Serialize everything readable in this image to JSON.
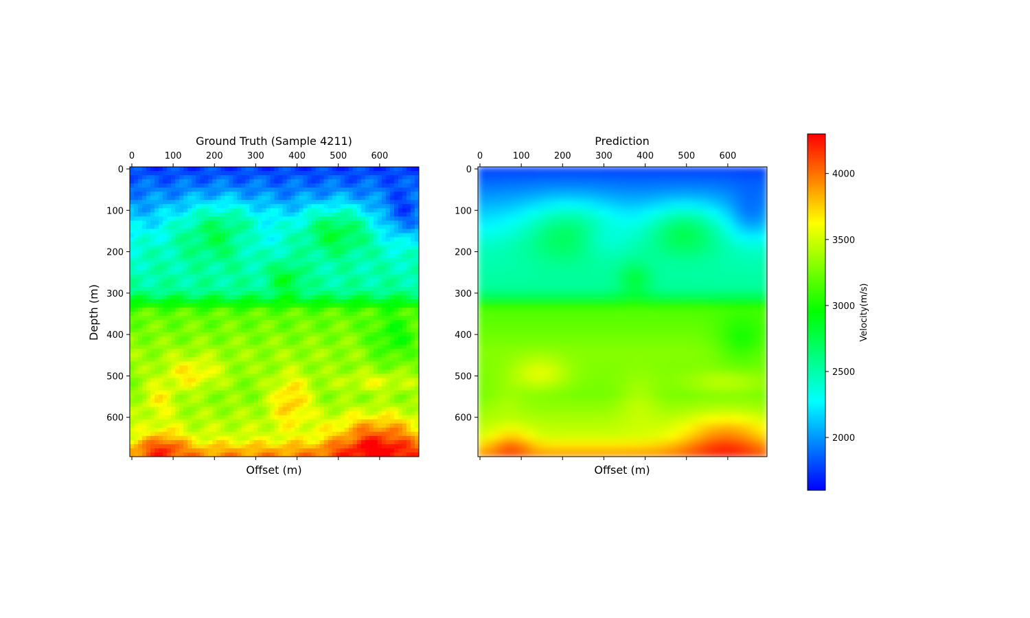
{
  "chart_data": [
    {
      "type": "heatmap",
      "title": "Ground Truth (Sample 4211)",
      "xlabel": "Offset (m)",
      "ylabel": "Depth (m)",
      "x_ticks": [
        0,
        100,
        200,
        300,
        400,
        500,
        600
      ],
      "y_ticks": [
        0,
        100,
        200,
        300,
        400,
        500,
        600
      ],
      "xlim": [
        0,
        700
      ],
      "ylim": [
        700,
        0
      ],
      "x_axis_position": "top",
      "grid": false,
      "grid_resolution": "coarse, blocky pixels (~10 m cells)",
      "depth_profile": [
        {
          "depth": 0,
          "velocity": 1750
        },
        {
          "depth": 100,
          "velocity": 2050
        },
        {
          "depth": 200,
          "velocity": 2400
        },
        {
          "depth": 300,
          "velocity": 2550
        },
        {
          "depth": 350,
          "velocity": 3200
        },
        {
          "depth": 450,
          "velocity": 3350
        },
        {
          "depth": 550,
          "velocity": 3300
        },
        {
          "depth": 650,
          "velocity": 3500
        },
        {
          "depth": 680,
          "velocity": 3800
        },
        {
          "depth": 700,
          "velocity": 3950
        }
      ]
    },
    {
      "type": "heatmap",
      "title": "Prediction",
      "xlabel": "Offset (m)",
      "ylabel": "",
      "x_ticks": [
        0,
        100,
        200,
        300,
        400,
        500,
        600
      ],
      "y_ticks": [
        0,
        100,
        200,
        300,
        400,
        500,
        600
      ],
      "xlim": [
        0,
        700
      ],
      "ylim": [
        700,
        0
      ],
      "x_axis_position": "top",
      "grid": false,
      "grid_resolution": "smooth",
      "depth_profile": [
        {
          "depth": 0,
          "velocity": 1750
        },
        {
          "depth": 100,
          "velocity": 2100
        },
        {
          "depth": 200,
          "velocity": 2450
        },
        {
          "depth": 300,
          "velocity": 2550
        },
        {
          "depth": 340,
          "velocity": 3150
        },
        {
          "depth": 450,
          "velocity": 3300
        },
        {
          "depth": 550,
          "velocity": 3250
        },
        {
          "depth": 650,
          "velocity": 3500
        },
        {
          "depth": 690,
          "velocity": 3850
        },
        {
          "depth": 700,
          "velocity": 3900
        }
      ]
    }
  ],
  "colorbar": {
    "label": "Velocity(m/s)",
    "vmin": 1600,
    "vmax": 4300,
    "ticks": [
      2000,
      2500,
      3000,
      3500,
      4000
    ],
    "colormap": [
      "#0000ff",
      "#00ffff",
      "#00ff00",
      "#ffff00",
      "#ff0000"
    ]
  }
}
